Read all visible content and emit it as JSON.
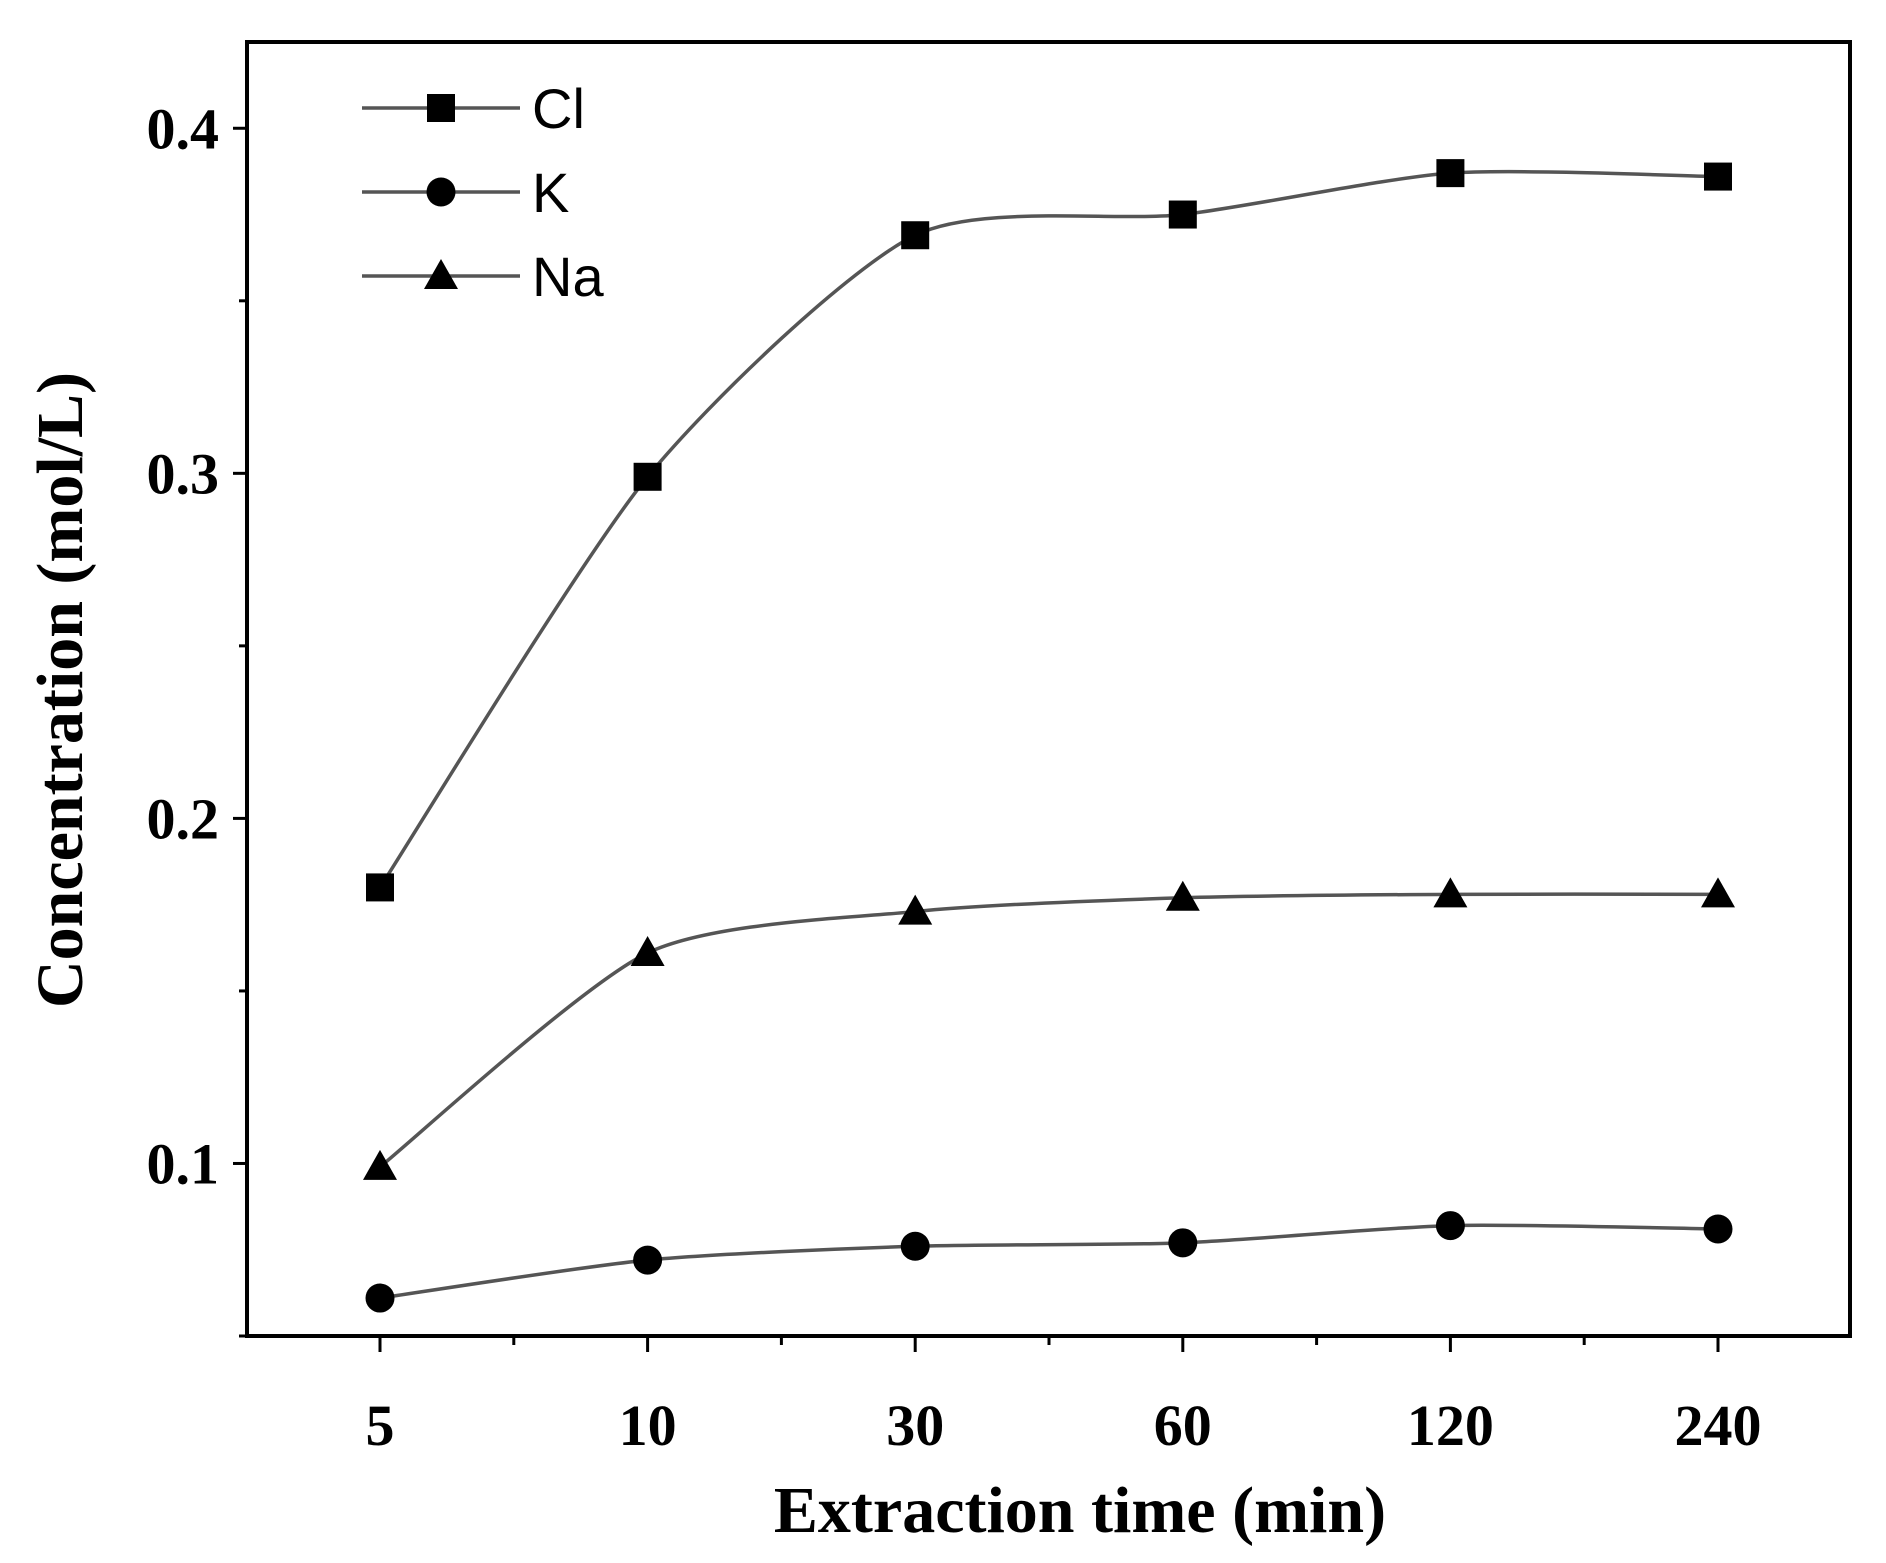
{
  "chart_data": {
    "type": "line",
    "title": "",
    "xlabel": "Extraction time (min)",
    "ylabel": "Concentration (mol/L)",
    "categories": [
      "5",
      "10",
      "30",
      "60",
      "120",
      "240"
    ],
    "ylim": [
      0.05,
      0.425
    ],
    "yticks": [
      "0.1",
      "0.2",
      "0.3",
      "0.4"
    ],
    "grid": false,
    "legend_position": "top-left",
    "line_color": "#555555",
    "marker_color": "#000000",
    "series": [
      {
        "name": "Cl",
        "marker": "square",
        "values": [
          0.18,
          0.299,
          0.369,
          0.375,
          0.387,
          0.386
        ]
      },
      {
        "name": "K",
        "marker": "circle",
        "values": [
          0.061,
          0.072,
          0.076,
          0.077,
          0.082,
          0.081
        ]
      },
      {
        "name": "Na",
        "marker": "triangle",
        "values": [
          0.099,
          0.161,
          0.173,
          0.177,
          0.178,
          0.178
        ]
      }
    ]
  }
}
